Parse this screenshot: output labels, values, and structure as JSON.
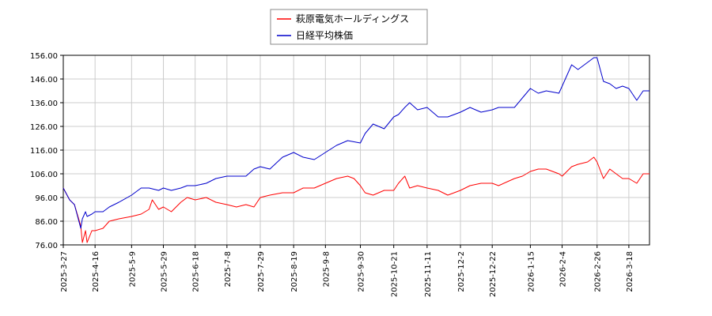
{
  "chart_data": {
    "type": "line",
    "legend": {
      "placement": "top-center"
    },
    "grid": true,
    "ylim": [
      76.0,
      156.0
    ],
    "y_ticks": [
      "76.00",
      "86.00",
      "96.00",
      "106.00",
      "116.00",
      "126.00",
      "136.00",
      "146.00",
      "156.00"
    ],
    "x_ticks": [
      "2025-3-27",
      "2025-4-16",
      "2025-5-9",
      "2025-5-29",
      "2025-6-18",
      "2025-7-8",
      "2025-7-29",
      "2025-8-19",
      "2025-9-8",
      "2025-9-30",
      "2025-10-21",
      "2025-11-11",
      "2025-12-2",
      "2025-12-22",
      "2026-1-15",
      "2026-2-4",
      "2026-2-26",
      "2026-3-18"
    ],
    "x_range": [
      "2025-3-27",
      "2026-3-31"
    ],
    "series": [
      {
        "name": "萩原電気ホールディングス",
        "color": "#ff0000",
        "points": [
          [
            "2025-3-27",
            100
          ],
          [
            "2025-3-31",
            95
          ],
          [
            "2025-4-3",
            93
          ],
          [
            "2025-4-7",
            84
          ],
          [
            "2025-4-8",
            77
          ],
          [
            "2025-4-10",
            82
          ],
          [
            "2025-4-11",
            77
          ],
          [
            "2025-4-14",
            82
          ],
          [
            "2025-4-16",
            82
          ],
          [
            "2025-4-21",
            83
          ],
          [
            "2025-4-25",
            86
          ],
          [
            "2025-5-1",
            87
          ],
          [
            "2025-5-9",
            88
          ],
          [
            "2025-5-15",
            89
          ],
          [
            "2025-5-20",
            91
          ],
          [
            "2025-5-22",
            95
          ],
          [
            "2025-5-26",
            91
          ],
          [
            "2025-5-29",
            92
          ],
          [
            "2025-6-3",
            90
          ],
          [
            "2025-6-9",
            94
          ],
          [
            "2025-6-13",
            96
          ],
          [
            "2025-6-18",
            95
          ],
          [
            "2025-6-25",
            96
          ],
          [
            "2025-7-1",
            94
          ],
          [
            "2025-7-8",
            93
          ],
          [
            "2025-7-14",
            92
          ],
          [
            "2025-7-20",
            93
          ],
          [
            "2025-7-25",
            92
          ],
          [
            "2025-7-29",
            96
          ],
          [
            "2025-8-4",
            97
          ],
          [
            "2025-8-12",
            98
          ],
          [
            "2025-8-19",
            98
          ],
          [
            "2025-8-25",
            100
          ],
          [
            "2025-9-1",
            100
          ],
          [
            "2025-9-8",
            102
          ],
          [
            "2025-9-15",
            104
          ],
          [
            "2025-9-22",
            105
          ],
          [
            "2025-9-26",
            104
          ],
          [
            "2025-9-30",
            101
          ],
          [
            "2025-10-3",
            98
          ],
          [
            "2025-10-8",
            97
          ],
          [
            "2025-10-15",
            99
          ],
          [
            "2025-10-21",
            99
          ],
          [
            "2025-10-24",
            102
          ],
          [
            "2025-10-28",
            105
          ],
          [
            "2025-10-31",
            100
          ],
          [
            "2025-11-5",
            101
          ],
          [
            "2025-11-11",
            100
          ],
          [
            "2025-11-18",
            99
          ],
          [
            "2025-11-24",
            97
          ],
          [
            "2025-12-2",
            99
          ],
          [
            "2025-12-8",
            101
          ],
          [
            "2025-12-15",
            102
          ],
          [
            "2025-12-22",
            102
          ],
          [
            "2025-12-26",
            101
          ],
          [
            "2026-1-5",
            104
          ],
          [
            "2026-1-10",
            105
          ],
          [
            "2026-1-15",
            107
          ],
          [
            "2026-1-20",
            108
          ],
          [
            "2026-1-25",
            108
          ],
          [
            "2026-2-2",
            106
          ],
          [
            "2026-2-4",
            105
          ],
          [
            "2026-2-10",
            109
          ],
          [
            "2026-2-14",
            110
          ],
          [
            "2026-2-20",
            111
          ],
          [
            "2026-2-24",
            113
          ],
          [
            "2026-2-26",
            111
          ],
          [
            "2026-3-2",
            104
          ],
          [
            "2026-3-6",
            108
          ],
          [
            "2026-3-10",
            106
          ],
          [
            "2026-3-14",
            104
          ],
          [
            "2026-3-18",
            104
          ],
          [
            "2026-3-23",
            102
          ],
          [
            "2026-3-27",
            106
          ],
          [
            "2026-3-31",
            106
          ]
        ]
      },
      {
        "name": "日経平均株価",
        "color": "#0000cc",
        "points": [
          [
            "2025-3-27",
            100
          ],
          [
            "2025-3-31",
            95
          ],
          [
            "2025-4-3",
            93
          ],
          [
            "2025-4-7",
            83
          ],
          [
            "2025-4-8",
            87
          ],
          [
            "2025-4-10",
            90
          ],
          [
            "2025-4-11",
            88
          ],
          [
            "2025-4-14",
            89
          ],
          [
            "2025-4-16",
            90
          ],
          [
            "2025-4-21",
            90
          ],
          [
            "2025-4-25",
            92
          ],
          [
            "2025-5-1",
            94
          ],
          [
            "2025-5-9",
            97
          ],
          [
            "2025-5-15",
            100
          ],
          [
            "2025-5-20",
            100
          ],
          [
            "2025-5-26",
            99
          ],
          [
            "2025-5-29",
            100
          ],
          [
            "2025-6-3",
            99
          ],
          [
            "2025-6-9",
            100
          ],
          [
            "2025-6-13",
            101
          ],
          [
            "2025-6-18",
            101
          ],
          [
            "2025-6-25",
            102
          ],
          [
            "2025-7-1",
            104
          ],
          [
            "2025-7-8",
            105
          ],
          [
            "2025-7-14",
            105
          ],
          [
            "2025-7-20",
            105
          ],
          [
            "2025-7-25",
            108
          ],
          [
            "2025-7-29",
            109
          ],
          [
            "2025-8-4",
            108
          ],
          [
            "2025-8-12",
            113
          ],
          [
            "2025-8-19",
            115
          ],
          [
            "2025-8-25",
            113
          ],
          [
            "2025-9-1",
            112
          ],
          [
            "2025-9-8",
            115
          ],
          [
            "2025-9-15",
            118
          ],
          [
            "2025-9-22",
            120
          ],
          [
            "2025-9-30",
            119
          ],
          [
            "2025-10-3",
            123
          ],
          [
            "2025-10-8",
            127
          ],
          [
            "2025-10-15",
            125
          ],
          [
            "2025-10-21",
            130
          ],
          [
            "2025-10-24",
            131
          ],
          [
            "2025-10-28",
            134
          ],
          [
            "2025-10-31",
            136
          ],
          [
            "2025-11-5",
            133
          ],
          [
            "2025-11-11",
            134
          ],
          [
            "2025-11-18",
            130
          ],
          [
            "2025-11-24",
            130
          ],
          [
            "2025-12-2",
            132
          ],
          [
            "2025-12-8",
            134
          ],
          [
            "2025-12-15",
            132
          ],
          [
            "2025-12-22",
            133
          ],
          [
            "2025-12-26",
            134
          ],
          [
            "2026-1-5",
            134
          ],
          [
            "2026-1-10",
            138
          ],
          [
            "2026-1-15",
            142
          ],
          [
            "2026-1-20",
            140
          ],
          [
            "2026-1-25",
            141
          ],
          [
            "2026-2-2",
            140
          ],
          [
            "2026-2-4",
            143
          ],
          [
            "2026-2-10",
            152
          ],
          [
            "2026-2-14",
            150
          ],
          [
            "2026-2-20",
            153
          ],
          [
            "2026-2-24",
            155
          ],
          [
            "2026-2-26",
            155
          ],
          [
            "2026-3-2",
            145
          ],
          [
            "2026-3-6",
            144
          ],
          [
            "2026-3-10",
            142
          ],
          [
            "2026-3-14",
            143
          ],
          [
            "2026-3-18",
            142
          ],
          [
            "2026-3-23",
            137
          ],
          [
            "2026-3-27",
            141
          ],
          [
            "2026-3-31",
            141
          ]
        ]
      }
    ]
  }
}
